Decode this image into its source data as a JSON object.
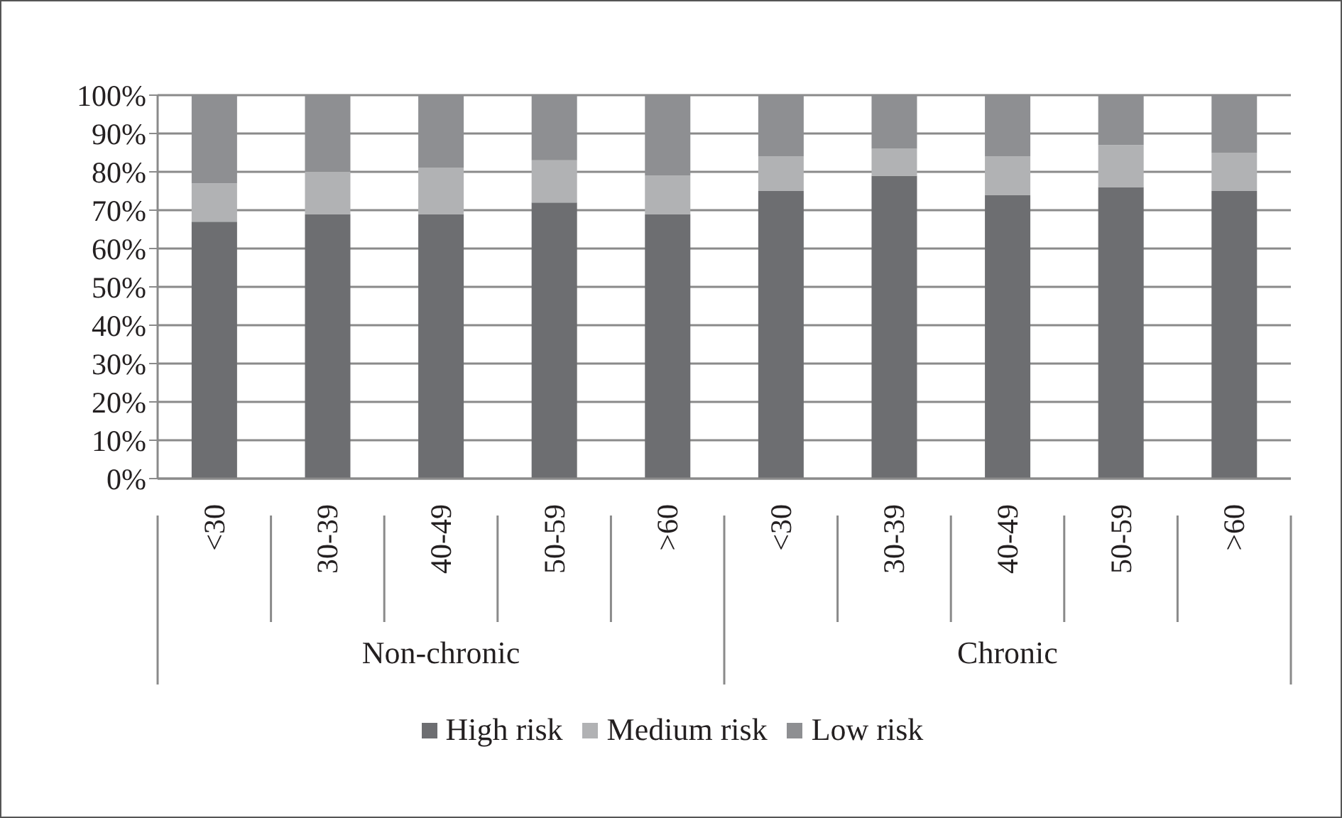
{
  "chart_data": {
    "type": "bar",
    "stacked": true,
    "categories": [
      "<30",
      "30-39",
      "40-49",
      "50-59",
      ">60",
      "<30",
      "30-39",
      "40-49",
      "50-59",
      ">60"
    ],
    "annotations": [
      "Non-chronic",
      "Chronic"
    ],
    "series": [
      {
        "name": "High risk",
        "color": "#6d6e71",
        "values": [
          67,
          69,
          69,
          72,
          69,
          75,
          79,
          74,
          76,
          75
        ]
      },
      {
        "name": "Medium risk",
        "color": "#b1b2b4",
        "values": [
          10,
          11,
          12,
          11,
          10,
          9,
          7,
          10,
          11,
          10
        ]
      },
      {
        "name": "Low risk",
        "color": "#8e8f92",
        "values": [
          23,
          20,
          19,
          17,
          21,
          16,
          14,
          16,
          13,
          15
        ]
      }
    ],
    "ylim": [
      0,
      100
    ],
    "yticks": [
      {
        "value": 0,
        "label": "0%"
      },
      {
        "value": 10,
        "label": "10%"
      },
      {
        "value": 20,
        "label": "20%"
      },
      {
        "value": 30,
        "label": "30%"
      },
      {
        "value": 40,
        "label": "40%"
      },
      {
        "value": 50,
        "label": "50%"
      },
      {
        "value": 60,
        "label": "60%"
      },
      {
        "value": 70,
        "label": "70%"
      },
      {
        "value": 80,
        "label": "80%"
      },
      {
        "value": 90,
        "label": "90%"
      },
      {
        "value": 100,
        "label": "100%"
      }
    ],
    "grid": "y",
    "legend": "bottom"
  }
}
